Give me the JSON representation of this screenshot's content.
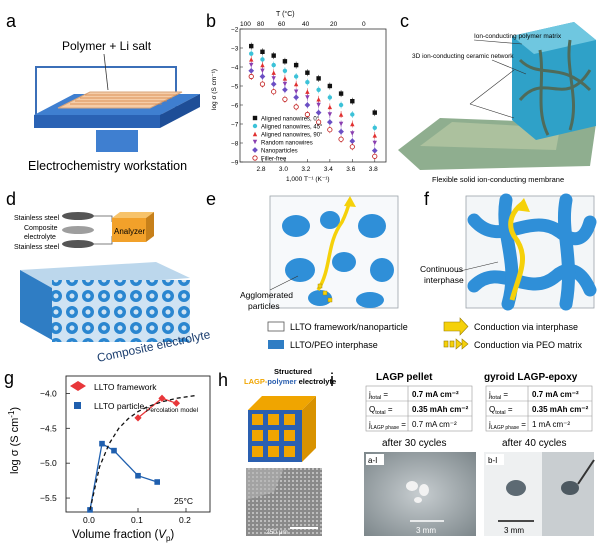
{
  "panels": {
    "a": {
      "letter": "a",
      "polymer_label": "Polymer + Li salt",
      "workstation_label": "Electrochemistry workstation"
    },
    "b": {
      "letter": "b",
      "top_axis_label": "T (°C)",
      "top_ticks": [
        "100",
        "80",
        "60",
        "40",
        "20",
        "0"
      ],
      "ylabel": "log σ (S cm⁻¹)",
      "xlabel": "1,000 T⁻¹ (K⁻¹)"
    },
    "c": {
      "letter": "c",
      "matrix_label": "Ion-conducting polymer matrix",
      "network_label": "3D ion-conducting ceramic network",
      "membrane_label": "Flexible solid ion-conducting membrane"
    },
    "d": {
      "letter": "d",
      "steel_top": "Stainless steel",
      "composite_line1": "Composite",
      "composite_line2": "electrolyte",
      "steel_bottom": "Stainless steel",
      "analyzer": "Analyzer",
      "caption": "Composite electrolyte"
    },
    "e": {
      "letter": "e",
      "agglomerated_line1": "Agglomerated",
      "agglomerated_line2": "particles"
    },
    "f": {
      "letter": "f",
      "continuous_line1": "Continuous",
      "continuous_line2": "interphase"
    },
    "legend_ef": {
      "framework": "LLTO framework/nanoparticle",
      "interphase": "LLTO/PEO interphase",
      "via_interphase": "Conduction via interphase",
      "via_peo": "Conduction via PEO matrix"
    },
    "g": {
      "letter": "g",
      "temperature": "25°C",
      "percolation": "Percolation model"
    },
    "h": {
      "letter": "h",
      "title_line1": "Structured",
      "title_lagp": "LAGP-",
      "title_polymer": "polymer",
      "title_rest": " electrolyte",
      "scale": "250 μm"
    },
    "i": {
      "letter": "i",
      "pellet_title": "LAGP pellet",
      "gyroid_title": "gyroid LAGP-epoxy",
      "pellet_rows": [
        {
          "label": "j",
          "sub": "total",
          "value": "0.7 mA cm⁻²"
        },
        {
          "label": "Q",
          "sub": "total",
          "value": "0.35 mAh cm⁻²"
        },
        {
          "label": "j",
          "sub": "LAGP phase",
          "value": "0.7 mA cm⁻²"
        }
      ],
      "gyroid_rows": [
        {
          "label": "j",
          "sub": "total",
          "value": "0.7 mA cm⁻²"
        },
        {
          "label": "Q",
          "sub": "total",
          "value": "0.35 mAh cm⁻²"
        },
        {
          "label": "j",
          "sub": "LAGP phase",
          "value": "1 mA cm⁻²"
        }
      ],
      "pellet_cycles": "after 30 cycles",
      "gyroid_cycles": "after 40 cycles",
      "tag_left": "a-I",
      "tag_right": "b-I",
      "scale_left": "3 mm",
      "scale_right": "3 mm"
    }
  },
  "colors": {
    "framework_red": "#e8373a",
    "particle_blue": "#1f5fae",
    "ion_blue": "#3a8fd6",
    "arrow_yellow": "#f5d10a",
    "lagp_orange": "#f0a500",
    "polymer_blue": "#2a5fb0"
  },
  "chart_data": [
    {
      "type": "scatter",
      "panel": "b",
      "xlabel": "1,000 T⁻¹ (K⁻¹)",
      "ylabel": "log σ (S cm⁻¹)",
      "secondary_xlabel": "T (°C)",
      "xlim": [
        2.6,
        3.9
      ],
      "ylim": [
        -9,
        -2
      ],
      "xticks": [
        2.8,
        3.0,
        3.2,
        3.4,
        3.6,
        3.8
      ],
      "yticks": [
        -9,
        -8,
        -7,
        -6,
        -5,
        -4,
        -3,
        -2
      ],
      "legend_position": "bottom-left",
      "series": [
        {
          "name": "Aligned nanowires, 0°",
          "color": "#111111",
          "marker": "square",
          "x": [
            2.7,
            2.8,
            2.9,
            3.0,
            3.1,
            3.2,
            3.3,
            3.4,
            3.5,
            3.6,
            3.8
          ],
          "y": [
            -2.9,
            -3.2,
            -3.4,
            -3.7,
            -3.9,
            -4.3,
            -4.6,
            -5.0,
            -5.4,
            -5.8,
            -6.4
          ]
        },
        {
          "name": "Aligned nanowires, 45°",
          "color": "#3cc2d8",
          "marker": "circle",
          "x": [
            2.7,
            2.8,
            2.9,
            3.0,
            3.1,
            3.2,
            3.3,
            3.4,
            3.5,
            3.6,
            3.8
          ],
          "y": [
            -3.3,
            -3.6,
            -3.9,
            -4.2,
            -4.5,
            -4.8,
            -5.2,
            -5.6,
            -6.0,
            -6.5,
            -7.2
          ]
        },
        {
          "name": "Aligned nanowires, 90°",
          "color": "#e03030",
          "marker": "triangle",
          "x": [
            2.7,
            2.8,
            2.9,
            3.0,
            3.1,
            3.2,
            3.3,
            3.4,
            3.5,
            3.6,
            3.8
          ],
          "y": [
            -3.6,
            -3.9,
            -4.3,
            -4.6,
            -4.9,
            -5.3,
            -5.7,
            -6.1,
            -6.5,
            -7.0,
            -7.6
          ]
        },
        {
          "name": "Random nanowires",
          "color": "#8a3fb0",
          "marker": "triangle-down",
          "x": [
            2.7,
            2.8,
            2.9,
            3.0,
            3.1,
            3.2,
            3.3,
            3.4,
            3.5,
            3.6,
            3.8
          ],
          "y": [
            -3.9,
            -4.2,
            -4.6,
            -4.9,
            -5.3,
            -5.6,
            -6.0,
            -6.5,
            -7.0,
            -7.5,
            -8.0
          ]
        },
        {
          "name": "Nanoparticles",
          "color": "#6b4fc4",
          "marker": "diamond",
          "x": [
            2.7,
            2.8,
            2.9,
            3.0,
            3.1,
            3.2,
            3.3,
            3.4,
            3.5,
            3.6,
            3.8
          ],
          "y": [
            -4.2,
            -4.5,
            -4.9,
            -5.2,
            -5.6,
            -6.0,
            -6.4,
            -6.9,
            -7.4,
            -7.9,
            -8.4
          ]
        },
        {
          "name": "Filler-free",
          "color": "#c01818",
          "marker": "open-circle",
          "x": [
            2.7,
            2.8,
            2.9,
            3.0,
            3.1,
            3.2,
            3.3,
            3.4,
            3.5,
            3.6,
            3.8
          ],
          "y": [
            -4.5,
            -4.9,
            -5.3,
            -5.7,
            -6.1,
            -6.5,
            -6.9,
            -7.3,
            -7.8,
            -8.2,
            -8.7
          ]
        }
      ]
    },
    {
      "type": "line",
      "panel": "g",
      "xlabel": "Volume fraction (Vp)",
      "ylabel": "log σ (S cm⁻¹)",
      "xlim": [
        -0.05,
        0.25
      ],
      "ylim": [
        -5.7,
        -3.75
      ],
      "xticks": [
        0.0,
        0.1,
        0.2
      ],
      "yticks": [
        -5.5,
        -5.0,
        -4.5,
        -4.0
      ],
      "legend_position": "top-left",
      "series": [
        {
          "name": "LLTO framework",
          "color": "#e8373a",
          "marker": "diamond",
          "x": [
            0.1,
            0.15,
            0.18
          ],
          "y": [
            -4.35,
            -4.07,
            -4.14
          ]
        },
        {
          "name": "LLTO particle",
          "color": "#1f5fae",
          "marker": "square",
          "x": [
            0.0,
            0.025,
            0.05,
            0.1,
            0.14
          ],
          "y": [
            -5.67,
            -4.72,
            -4.82,
            -5.18,
            -5.27
          ]
        },
        {
          "name": "Percolation model",
          "color": "#111111",
          "style": "dashed",
          "x": [
            0.0,
            0.02,
            0.04,
            0.06,
            0.08,
            0.1,
            0.12,
            0.15,
            0.18,
            0.22
          ],
          "y": [
            -5.67,
            -5.05,
            -4.72,
            -4.5,
            -4.36,
            -4.26,
            -4.19,
            -4.12,
            -4.07,
            -4.03
          ]
        }
      ]
    }
  ]
}
